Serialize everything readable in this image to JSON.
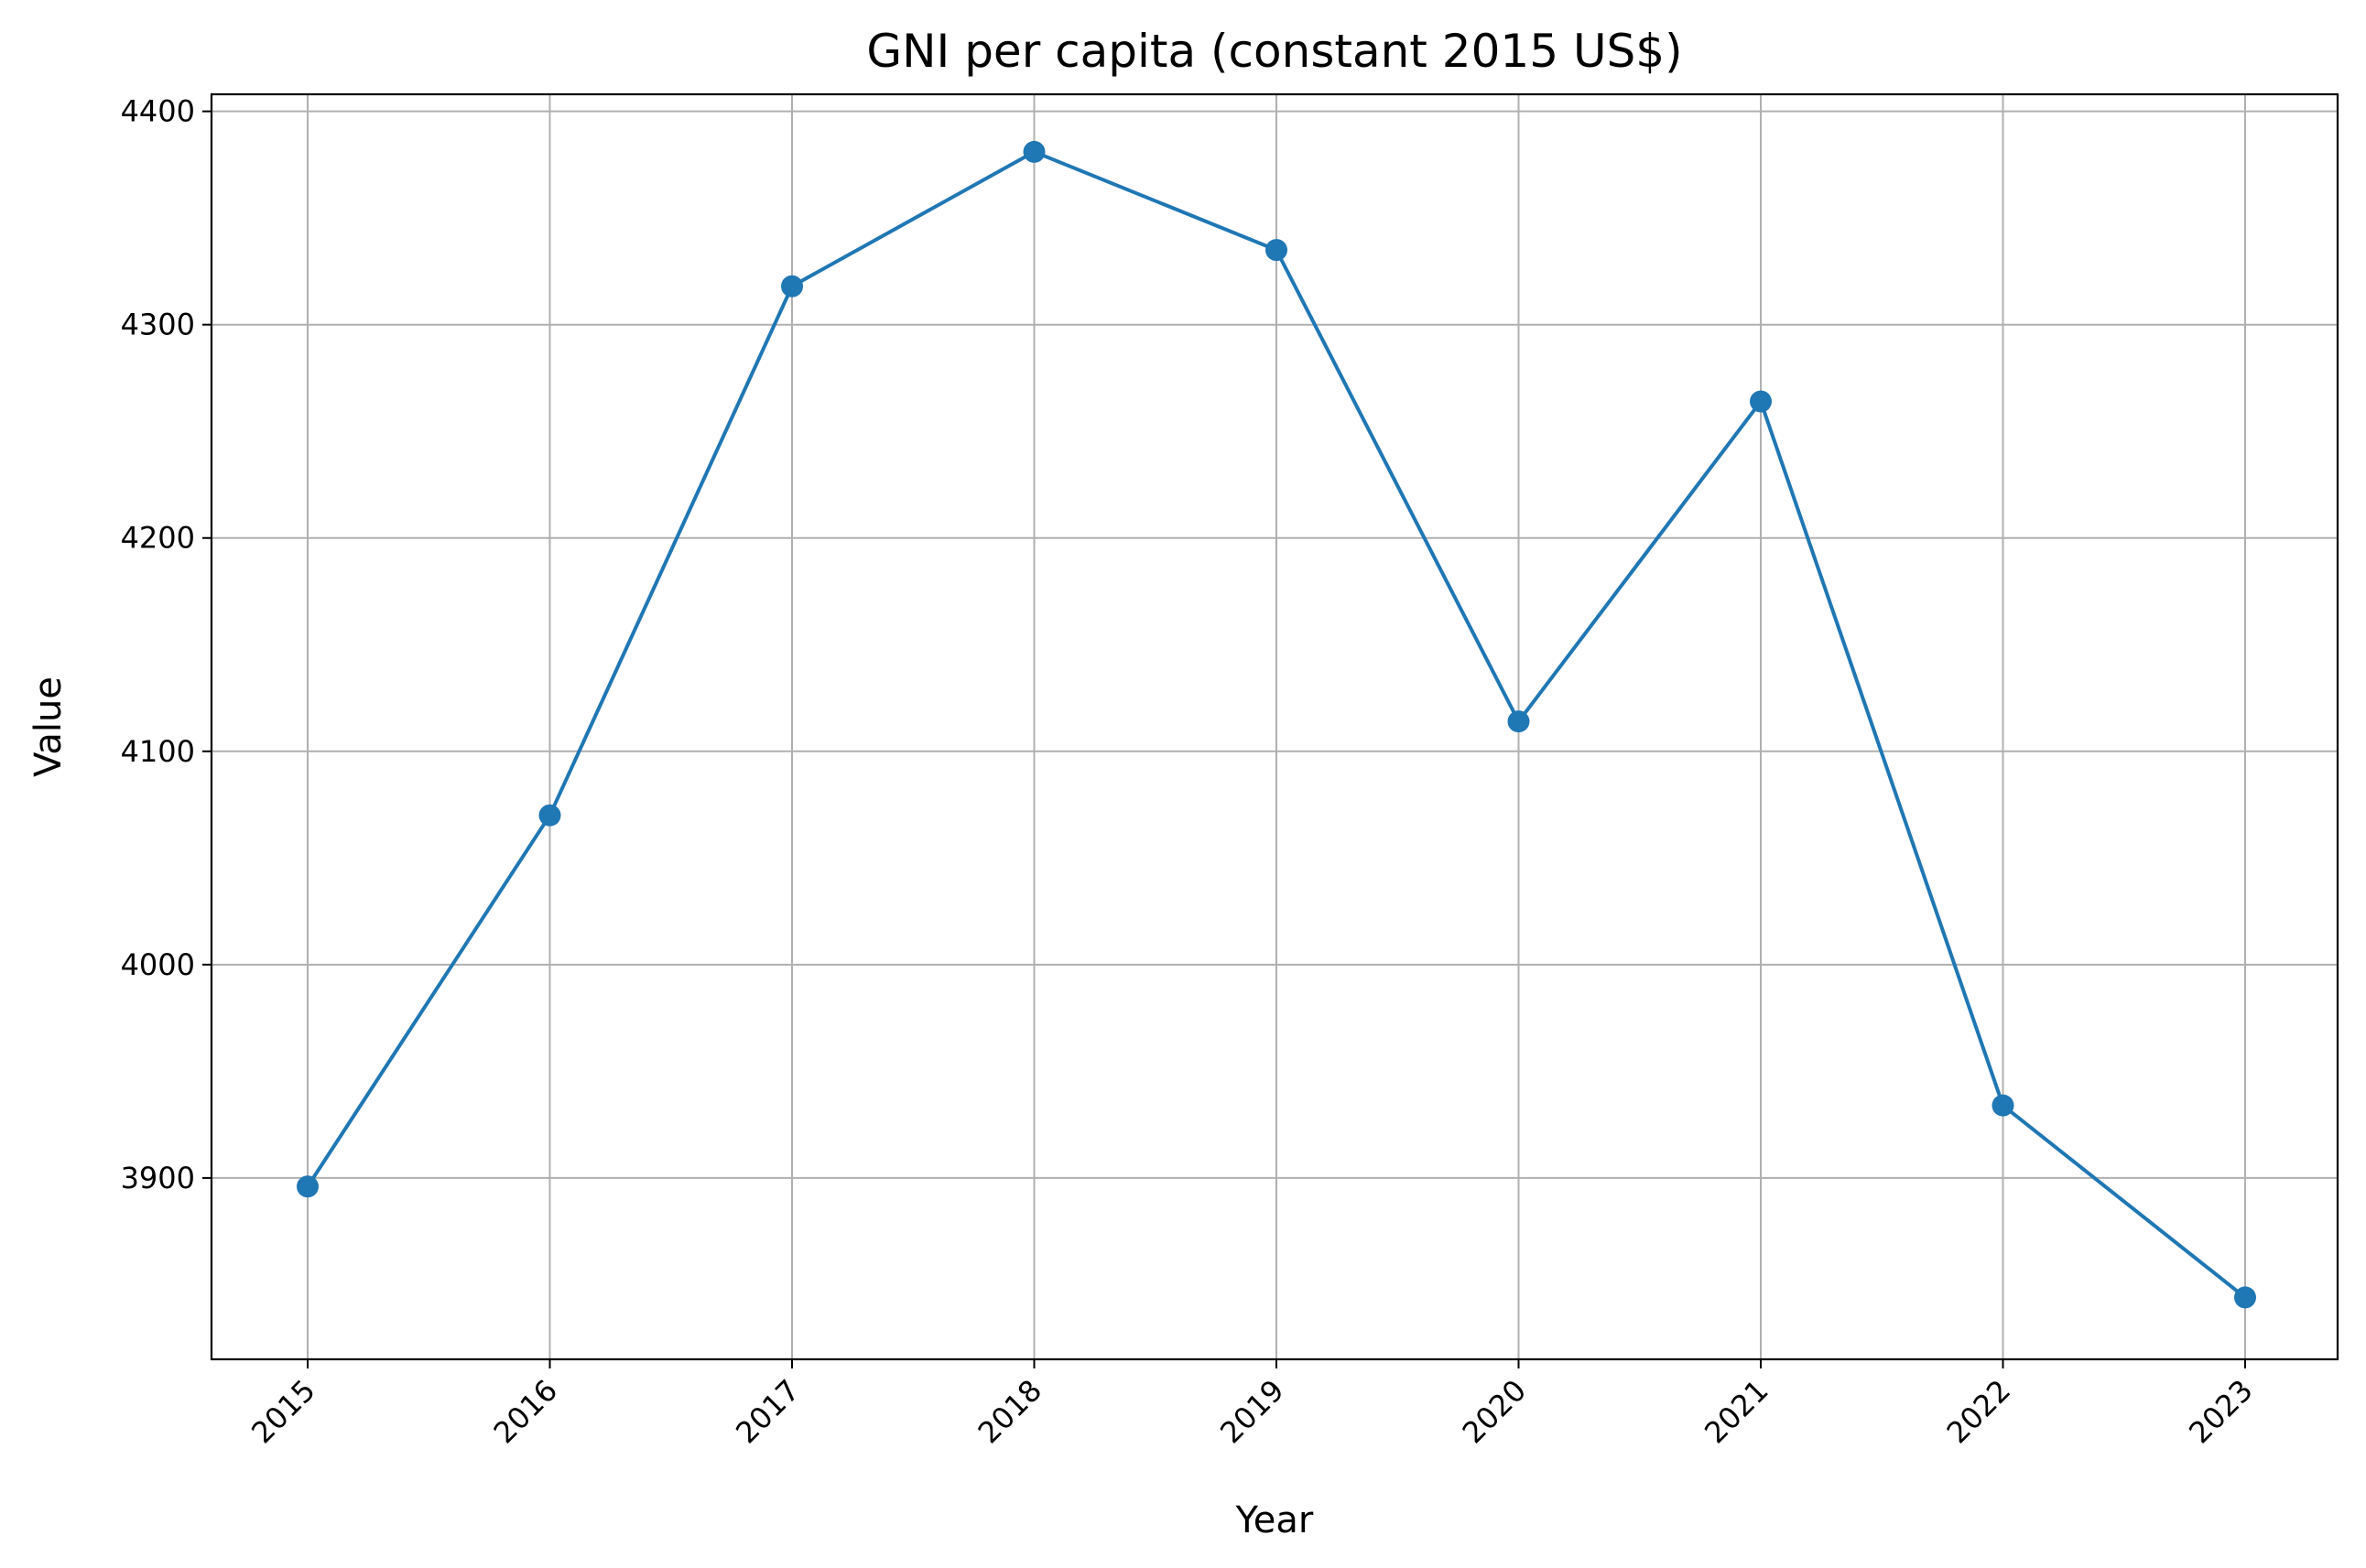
{
  "chart_data": {
    "type": "line",
    "title": "GNI per capita (constant 2015 US$)",
    "xlabel": "Year",
    "ylabel": "Value",
    "x": [
      "2015",
      "2016",
      "2017",
      "2018",
      "2019",
      "2020",
      "2021",
      "2022",
      "2023"
    ],
    "y_ticks": [
      3900,
      4000,
      4100,
      4200,
      4300,
      4400
    ],
    "ylim": [
      3815,
      4408
    ],
    "grid": true,
    "series": [
      {
        "values": [
          3896,
          4070,
          4318,
          4381,
          4335,
          4114,
          4264,
          3934,
          3844
        ],
        "color": "#1f77b4",
        "marker": "circle"
      }
    ],
    "x_tick_rotation": 45
  }
}
